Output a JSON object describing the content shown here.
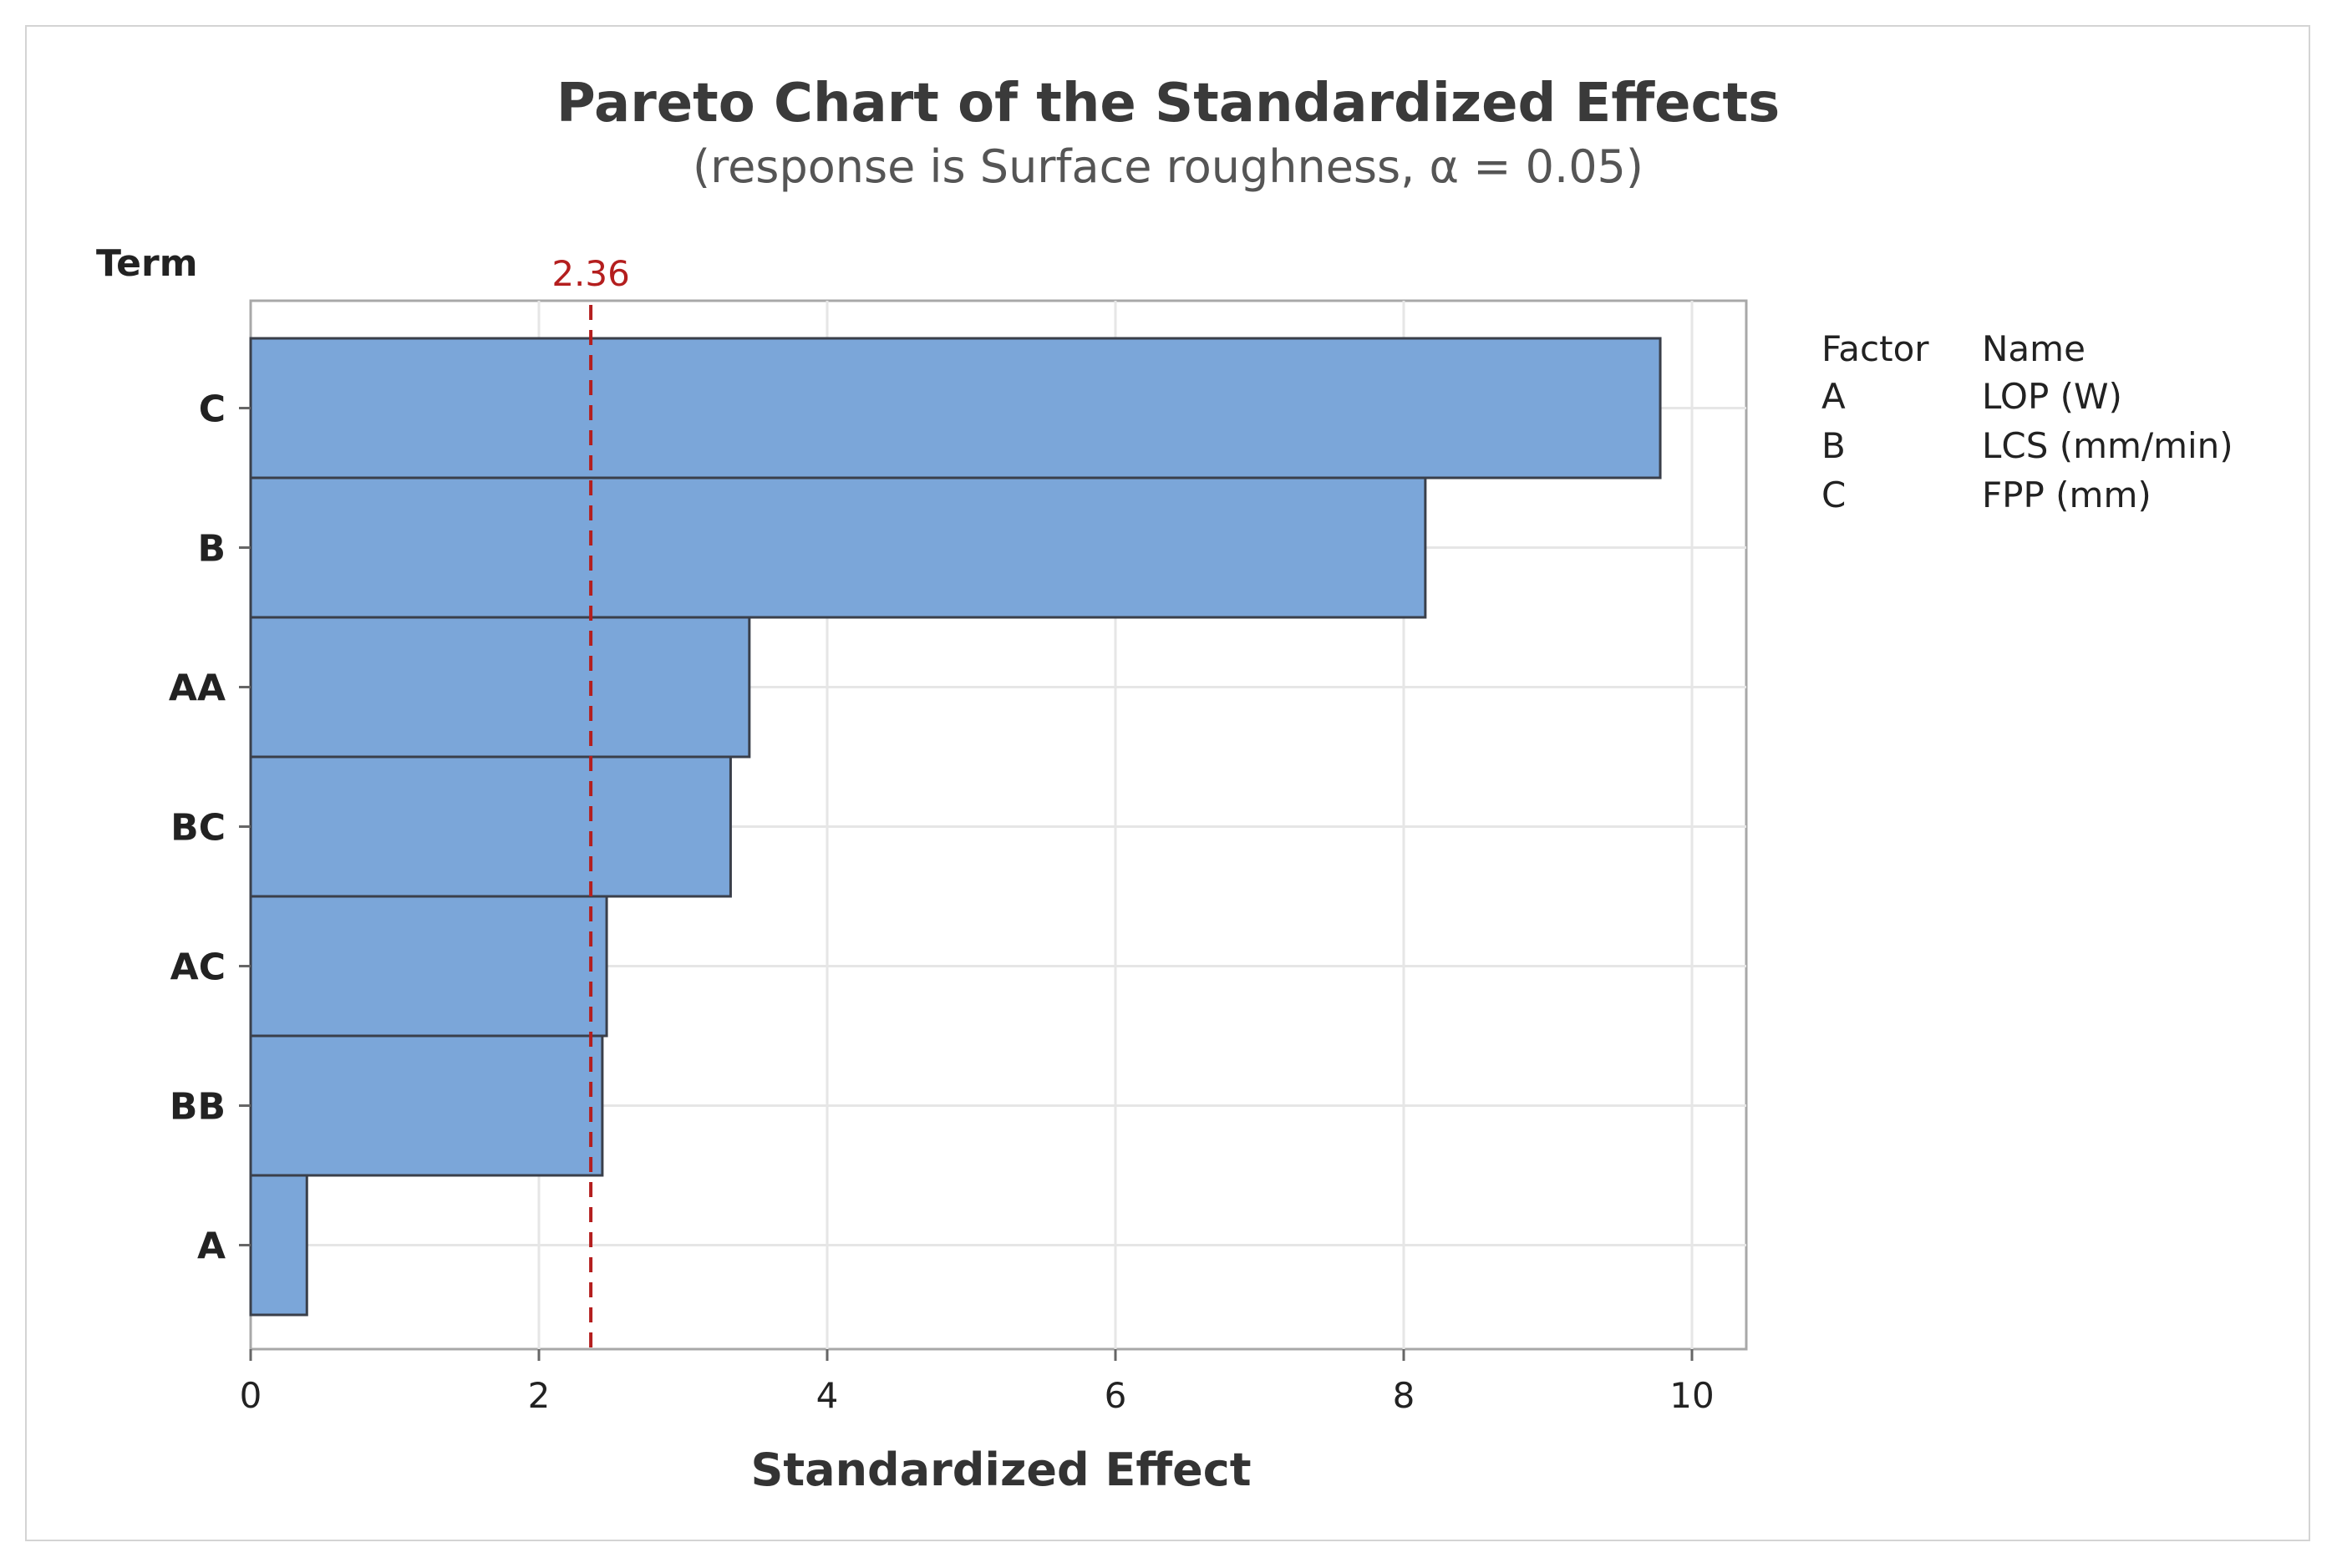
{
  "chart_data": {
    "type": "bar",
    "orientation": "horizontal",
    "title": "Pareto Chart of the Standardized Effects",
    "subtitle": "(response is Surface roughness, α = 0.05)",
    "xlabel": "Standardized Effect",
    "ylabel": "Term",
    "categories": [
      "C",
      "B",
      "AA",
      "BC",
      "AC",
      "BB",
      "A"
    ],
    "values": [
      9.78,
      8.15,
      3.46,
      3.33,
      2.47,
      2.44,
      0.39
    ],
    "xlim": [
      0,
      10.4
    ],
    "xticks": [
      0,
      2,
      4,
      6,
      8,
      10
    ],
    "reference_line": {
      "value": 2.36,
      "label": "2.36",
      "color": "#b41e1e"
    },
    "bar_color": "#7ba6d9",
    "bar_edge_color": "#3a3f4a",
    "grid": true,
    "legend": {
      "placement": "right",
      "headers": [
        "Factor",
        "Name"
      ],
      "rows": [
        {
          "factor": "A",
          "name": "LOP (W)"
        },
        {
          "factor": "B",
          "name": "LCS (mm/min)"
        },
        {
          "factor": "C",
          "name": "FPP (mm)"
        }
      ]
    }
  }
}
